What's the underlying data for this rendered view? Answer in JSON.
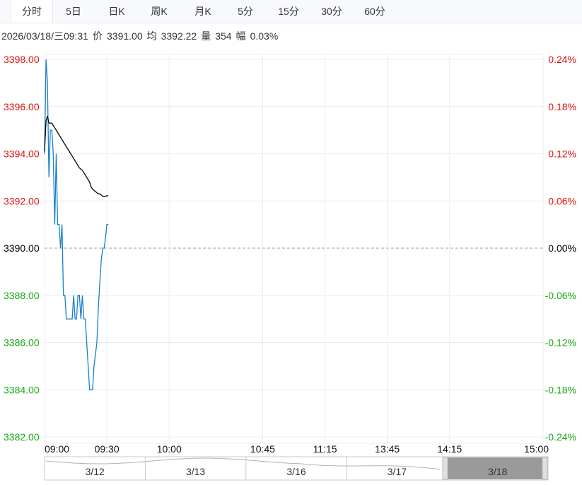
{
  "tabs": [
    {
      "label": "分时",
      "active": true
    },
    {
      "label": "5日",
      "active": false
    },
    {
      "label": "日K",
      "active": false
    },
    {
      "label": "周K",
      "active": false
    },
    {
      "label": "月K",
      "active": false
    },
    {
      "label": "5分",
      "active": false
    },
    {
      "label": "15分",
      "active": false
    },
    {
      "label": "30分",
      "active": false
    },
    {
      "label": "60分",
      "active": false
    }
  ],
  "info": {
    "datetime": "2026/03/18/三09:31",
    "price_label": "价",
    "price": "3391.00",
    "avg_label": "均",
    "avg": "3392.22",
    "vol_label": "量",
    "vol": "354",
    "amp_label": "幅",
    "amp": "0.03%"
  },
  "colors": {
    "up": "#e01010",
    "down": "#15a915",
    "neutral": "#000000",
    "price_line": "#1a7fc8",
    "avg_line": "#000000",
    "grid": "#e8ecf1",
    "navigator_fill": "#9a9a9a"
  },
  "chart_data": {
    "type": "line",
    "ylim": [
      3382,
      3398
    ],
    "ylim_right": [
      -0.24,
      0.24
    ],
    "base_price": 3390.0,
    "y_ticks": [
      "3398.00",
      "3396.00",
      "3394.00",
      "3392.00",
      "3390.00",
      "3388.00",
      "3386.00",
      "3384.00",
      "3382.00"
    ],
    "y_ticks_right": [
      "0.24%",
      "0.18%",
      "0.12%",
      "0.06%",
      "0.00%",
      "-0.06%",
      "-0.12%",
      "-0.18%",
      "-0.24%"
    ],
    "x_ticks": [
      "09:00",
      "09:30",
      "10:00",
      "10:45",
      "11:15",
      "13:45",
      "14:15",
      "15:00"
    ],
    "x_minutes": [
      0,
      30,
      60,
      105,
      135,
      165,
      195,
      240
    ],
    "series": [
      {
        "role": "price",
        "x": [
          0,
          0.7,
          1.4,
          2.1,
          2.8,
          3.5,
          4.2,
          4.9,
          5.6,
          6.3,
          7,
          7.7,
          8.4,
          9.1,
          9.8,
          10.5,
          11.2,
          11.9,
          12.6,
          13.3,
          14,
          14.7,
          15.4,
          16.1,
          16.8,
          17.5,
          18.2,
          18.9,
          19.6,
          20.3,
          21,
          21.7,
          22.4,
          23.1,
          23.8,
          24.5,
          25.2,
          25.9,
          26.6,
          27.3,
          28,
          28.7,
          29.4,
          30,
          30.7
        ],
        "values": [
          3394.0,
          3398.0,
          3397.0,
          3393.0,
          3395.0,
          3395.0,
          3394.0,
          3391.0,
          3394.0,
          3391.0,
          3391.0,
          3390.0,
          3391.0,
          3388.0,
          3388.0,
          3387.0,
          3387.0,
          3387.0,
          3387.0,
          3387.0,
          3388.0,
          3387.0,
          3387.0,
          3388.0,
          3388.0,
          3387.0,
          3388.0,
          3387.0,
          3387.0,
          3386.0,
          3385.0,
          3384.0,
          3384.0,
          3384.0,
          3385.0,
          3385.5,
          3386.0,
          3387.5,
          3388.5,
          3389.5,
          3390.0,
          3390.0,
          3390.5,
          3391.0,
          3391.0
        ]
      },
      {
        "role": "average",
        "x": [
          0,
          0.7,
          1.4,
          2.1,
          2.8,
          3.5,
          4.2,
          4.9,
          5.6,
          6.3,
          7,
          7.7,
          8.4,
          9.1,
          9.8,
          10.5,
          11.2,
          11.9,
          12.6,
          13.3,
          14,
          14.7,
          15.4,
          16.1,
          16.8,
          17.5,
          18.2,
          18.9,
          19.6,
          20.3,
          21,
          21.7,
          22.4,
          23.1,
          23.8,
          24.5,
          25.2,
          25.9,
          26.6,
          27.3,
          28,
          28.7,
          29.4,
          30,
          30.7
        ],
        "values": [
          3394.1,
          3395.4,
          3395.6,
          3395.3,
          3395.3,
          3395.3,
          3395.2,
          3395.1,
          3395.0,
          3394.9,
          3394.8,
          3394.7,
          3394.6,
          3394.5,
          3394.4,
          3394.3,
          3394.2,
          3394.1,
          3394.0,
          3393.9,
          3393.8,
          3393.7,
          3393.6,
          3393.5,
          3393.4,
          3393.35,
          3393.3,
          3393.2,
          3393.1,
          3393.0,
          3392.9,
          3392.8,
          3392.6,
          3392.5,
          3392.45,
          3392.4,
          3392.35,
          3392.3,
          3392.3,
          3392.25,
          3392.2,
          3392.2,
          3392.2,
          3392.22,
          3392.22
        ]
      }
    ],
    "navigator_dates": [
      "3/12",
      "3/13",
      "3/16",
      "3/17",
      "3/18"
    ],
    "grid": true,
    "legend": "none"
  }
}
